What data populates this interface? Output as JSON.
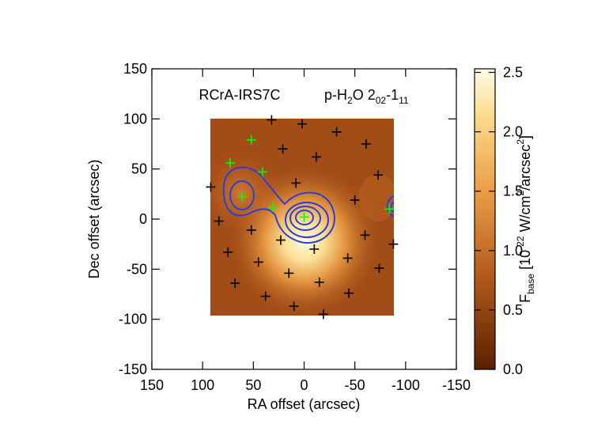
{
  "chart_data": {
    "type": "scatter",
    "xlabel": "RA offset (arcsec)",
    "ylabel": "Dec offset (arcsec)",
    "xlim": [
      150,
      -150
    ],
    "ylim": [
      -150,
      150
    ],
    "xticks": [
      150,
      100,
      50,
      0,
      -50,
      -100,
      -150
    ],
    "yticks": [
      -150,
      -100,
      -50,
      0,
      50,
      100,
      150
    ],
    "annotations": [
      {
        "parts": [
          {
            "text": "RCrA-IRS7C"
          }
        ]
      },
      {
        "parts": [
          {
            "text": "p-H"
          },
          {
            "text": "2",
            "script": "sub"
          },
          {
            "text": "O 2"
          },
          {
            "text": "02",
            "script": "sub"
          },
          {
            "text": "-1"
          },
          {
            "text": "11",
            "script": "sub"
          }
        ]
      }
    ],
    "series": [
      {
        "color": "#000000",
        "x": [
          32,
          2,
          -32,
          -61,
          21,
          -12,
          -73,
          92,
          8,
          -50,
          84,
          52,
          -60,
          -88,
          23,
          -10,
          75,
          45,
          -43,
          -74,
          15,
          68,
          -15,
          38,
          -44,
          10,
          -19
        ],
        "y": [
          99,
          95,
          87,
          75,
          70,
          62,
          44,
          32,
          36,
          19,
          -2,
          -11,
          -16,
          -25,
          -21,
          -30,
          -33,
          -43,
          -39,
          -49,
          -54,
          -64,
          -63,
          -77,
          -74,
          -87,
          -95
        ]
      },
      {
        "color": "#00ff00",
        "x": [
          52,
          73,
          41,
          61,
          31,
          0,
          -84
        ],
        "y": [
          79,
          56,
          47,
          22,
          12,
          2,
          10
        ]
      }
    ],
    "colorbar": {
      "label_parts": [
        {
          "text": "F"
        },
        {
          "text": "base",
          "script": "sub"
        },
        {
          "text": " [10"
        },
        {
          "text": "-22",
          "script": "sup"
        },
        {
          "text": " W/cm"
        },
        {
          "text": "2",
          "script": "sup"
        },
        {
          "text": "/arcsec"
        },
        {
          "text": "2",
          "script": "sup"
        },
        {
          "text": "]"
        }
      ],
      "lim": [
        0,
        2.53
      ],
      "ticks": [
        {
          "value": 0,
          "label": "0.0"
        },
        {
          "value": 0.5,
          "label": "0.5"
        },
        {
          "value": 1,
          "label": "1.0"
        },
        {
          "value": 1.5,
          "label": "1.5"
        },
        {
          "value": 2,
          "label": "2.0"
        },
        {
          "value": 2.5,
          "label": "2.5"
        }
      ]
    }
  }
}
